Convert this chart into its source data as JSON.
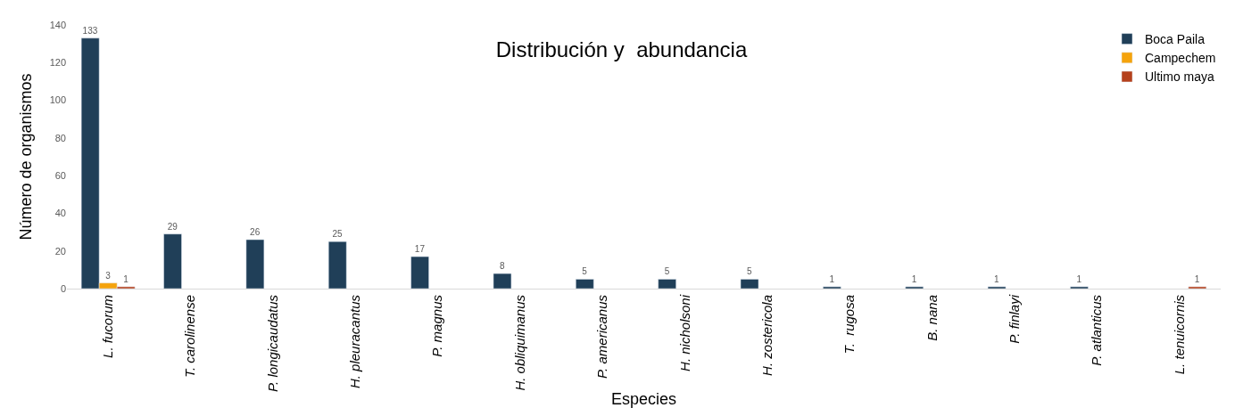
{
  "chart_data": {
    "type": "bar",
    "title": "Distribución y  abundancia",
    "xlabel": "Especies",
    "ylabel": "Número de organismos",
    "categories": [
      "L. fucorum",
      "T. carolinense",
      "P. longicaudatus",
      "H. pleuracantus",
      "P. magnus",
      "H. obliquimanus",
      "P. americanus",
      "H. nicholsoni",
      "H. zostericola",
      "T.  rugosa",
      "B. nana",
      "P. finlayi",
      "P. atlanticus",
      "L. tenuicornis"
    ],
    "series": [
      {
        "name": "Boca Paila",
        "color": "#203f58",
        "values": [
          133,
          29,
          26,
          25,
          17,
          8,
          5,
          5,
          5,
          1,
          1,
          1,
          1,
          null
        ]
      },
      {
        "name": "Campechem",
        "color": "#f5a30c",
        "values": [
          3,
          null,
          null,
          null,
          null,
          null,
          null,
          null,
          null,
          null,
          null,
          null,
          null,
          null
        ]
      },
      {
        "name": "Ultimo maya",
        "color": "#b5411c",
        "values": [
          1,
          null,
          null,
          null,
          null,
          null,
          null,
          null,
          null,
          null,
          null,
          null,
          null,
          1
        ]
      }
    ],
    "ylim": [
      0,
      140
    ],
    "yticks": [
      0,
      20,
      40,
      60,
      80,
      100,
      120,
      140
    ],
    "legend": "top right",
    "data_labels": true
  }
}
